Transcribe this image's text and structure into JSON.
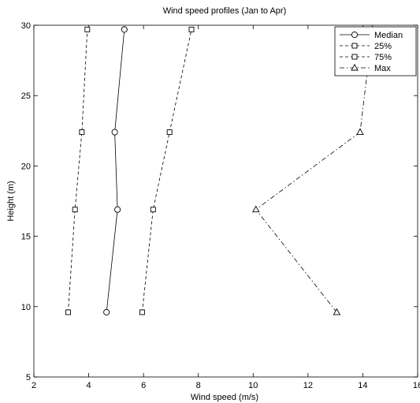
{
  "chart_data": {
    "type": "line",
    "title": "Wind speed profiles (Jan to Apr)",
    "xlabel": "Wind speed (m/s)",
    "ylabel": "Height (m)",
    "xlim": [
      2,
      16
    ],
    "ylim": [
      5,
      30
    ],
    "xticks": [
      2,
      4,
      6,
      8,
      10,
      12,
      14,
      16
    ],
    "yticks": [
      5,
      10,
      15,
      20,
      25,
      30
    ],
    "grid": false,
    "legend_position": "top-right",
    "series": [
      {
        "name": "Median",
        "style": "solid",
        "marker": "circle",
        "points": [
          [
            4.65,
            9.6
          ],
          [
            5.05,
            16.9
          ],
          [
            4.95,
            22.4
          ],
          [
            5.3,
            29.7
          ]
        ]
      },
      {
        "name": "25%",
        "style": "dashed",
        "marker": "square",
        "points": [
          [
            3.25,
            9.6
          ],
          [
            3.5,
            16.9
          ],
          [
            3.75,
            22.4
          ],
          [
            3.95,
            29.7
          ]
        ]
      },
      {
        "name": "75%",
        "style": "dashed",
        "marker": "square",
        "points": [
          [
            5.95,
            9.6
          ],
          [
            6.35,
            16.9
          ],
          [
            6.95,
            22.4
          ],
          [
            7.75,
            29.7
          ]
        ]
      },
      {
        "name": "Max",
        "style": "dashdot",
        "marker": "triangle",
        "points": [
          [
            13.05,
            9.6
          ],
          [
            10.1,
            16.9
          ],
          [
            13.9,
            22.4
          ],
          [
            14.35,
            29.7
          ]
        ]
      }
    ]
  }
}
